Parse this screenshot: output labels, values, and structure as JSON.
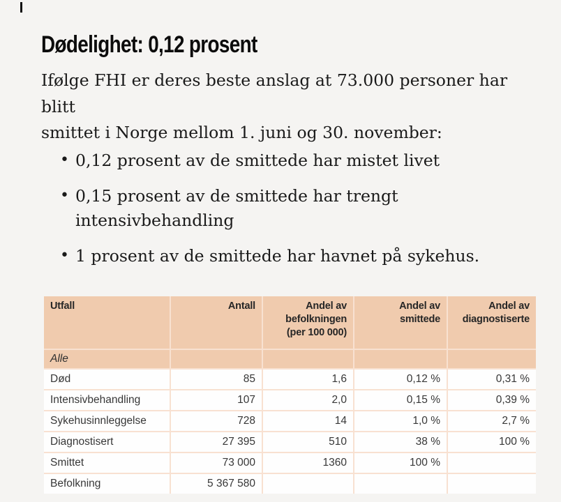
{
  "page": {
    "background": "#f5f4f2"
  },
  "article": {
    "heading": "Dødelighet: 0,12 prosent",
    "paragraph": "Ifølge FHI er deres beste anslag at 73.000 personer har blitt\nsmittet i Norge mellom 1. juni og 30. november:",
    "bullets": [
      "0,12 prosent av de smittede har mistet livet",
      "0,15 prosent av de smittede har trengt\nintensivbehandling",
      "1 prosent av de smittede har havnet på sykehus."
    ]
  },
  "table": {
    "columns": [
      "Utfall",
      "Antall",
      "Andel av\nbefolkningen\n(per 100 000)",
      "Andel av\nsmittede",
      "Andel av\ndiagnostiserte"
    ],
    "group_label": "Alle",
    "rows": [
      [
        "Død",
        "85",
        "1,6",
        "0,12 %",
        "0,31 %"
      ],
      [
        "Intensivbehandling",
        "107",
        "2,0",
        "0,15 %",
        "0,39 %"
      ],
      [
        "Sykehusinnleggelse",
        "728",
        "14",
        "1,0 %",
        "2,7 %"
      ],
      [
        "Diagnostisert",
        "27 395",
        "510",
        "38 %",
        "100 %"
      ],
      [
        "Smittet",
        "73 000",
        "1360",
        "100 %",
        ""
      ],
      [
        "Befolkning",
        "5 367 580",
        "",
        "",
        ""
      ]
    ],
    "colors": {
      "header_bg": "#f0cbae",
      "grid_line": "#f8e1d1",
      "cell_bg": "#fefefe",
      "text": "#373737"
    }
  }
}
